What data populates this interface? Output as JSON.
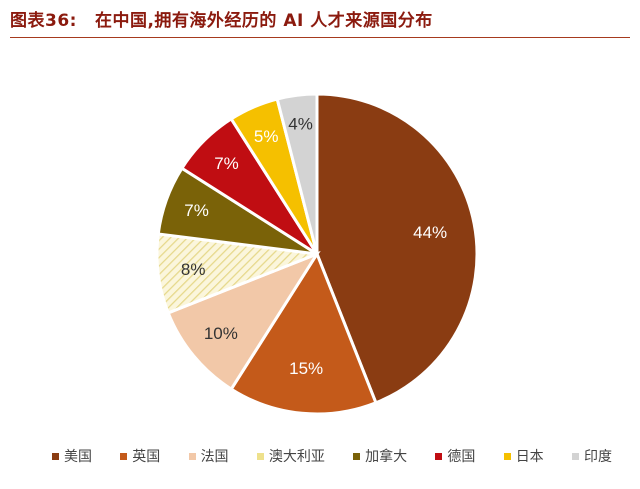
{
  "header": {
    "figure_label": "图表36:",
    "title": "在中国,拥有海外经历的 AI 人才来源国分布"
  },
  "chart_data": {
    "type": "pie",
    "categories": [
      "美国",
      "英国",
      "法国",
      "澳大利亚",
      "加拿大",
      "德国",
      "日本",
      "印度"
    ],
    "values": [
      44,
      15,
      10,
      8,
      7,
      7,
      5,
      4
    ],
    "labels": [
      "44%",
      "15%",
      "10%",
      "8%",
      "7%",
      "7%",
      "5%",
      "4%"
    ],
    "colors": [
      "#8a3c12",
      "#c45a1a",
      "#f2c8a8",
      "#f3eab8",
      "#7a6208",
      "#c00d12",
      "#f5c000",
      "#d3d3d3"
    ],
    "hatched": [
      false,
      false,
      false,
      true,
      false,
      false,
      false,
      false
    ],
    "start": "12 o'clock",
    "direction": "clockwise",
    "legend_position": "bottom"
  }
}
